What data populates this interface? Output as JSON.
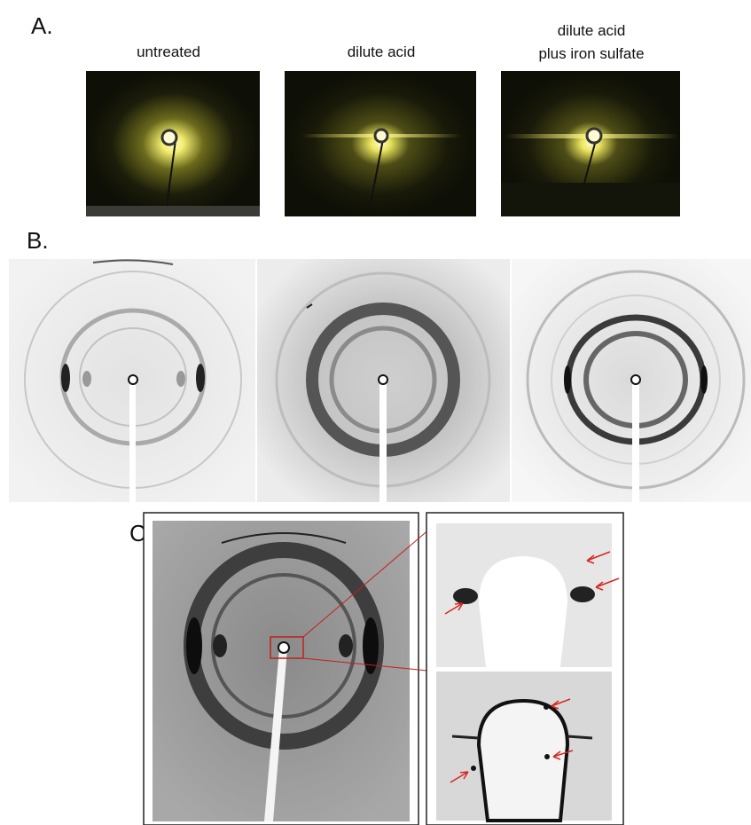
{
  "panels": {
    "a": {
      "label": "A.",
      "images": [
        {
          "caption": [
            "untreated"
          ]
        },
        {
          "caption": [
            "dilute acid"
          ]
        },
        {
          "caption": [
            "dilute acid",
            "plus iron sulfate"
          ]
        }
      ]
    },
    "b": {
      "label": "B."
    },
    "c": {
      "label": "C."
    }
  }
}
